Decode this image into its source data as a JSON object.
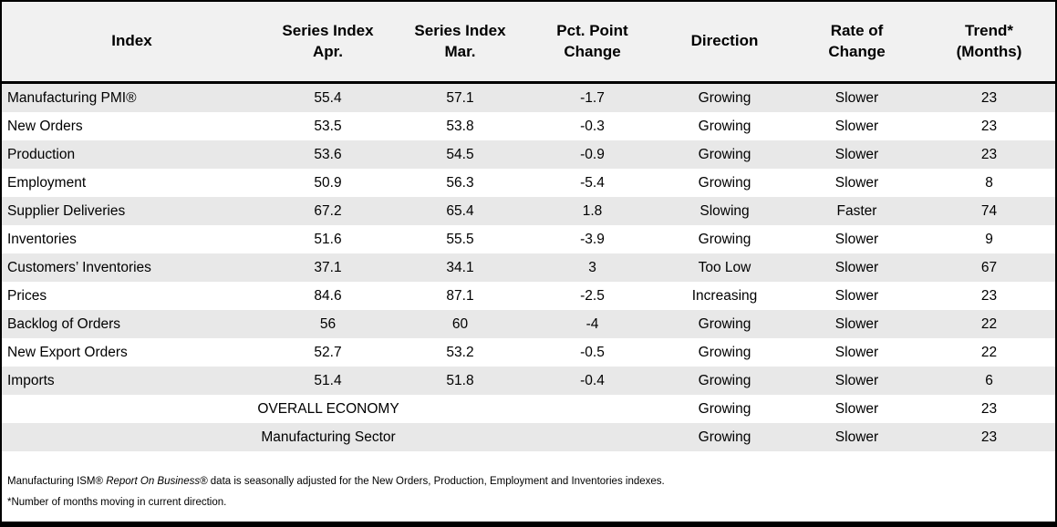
{
  "chart_data": {
    "type": "table",
    "column_keys": [
      "index",
      "series_index_apr",
      "series_index_mar",
      "pct_point_change",
      "direction",
      "rate_of_change",
      "trend_months"
    ],
    "columns": [
      "Index",
      "Series Index\nApr.",
      "Series Index\nMar.",
      "Pct. Point\nChange",
      "Direction",
      "Rate of\nChange",
      "Trend*\n(Months)"
    ],
    "rows": [
      [
        "Manufacturing PMI®",
        "55.4",
        "57.1",
        "-1.7",
        "Growing",
        "Slower",
        "23"
      ],
      [
        "New Orders",
        "53.5",
        "53.8",
        "-0.3",
        "Growing",
        "Slower",
        "23"
      ],
      [
        "Production",
        "53.6",
        "54.5",
        "-0.9",
        "Growing",
        "Slower",
        "23"
      ],
      [
        "Employment",
        "50.9",
        "56.3",
        "-5.4",
        "Growing",
        "Slower",
        "8"
      ],
      [
        "Supplier Deliveries",
        "67.2",
        "65.4",
        "1.8",
        "Slowing",
        "Faster",
        "74"
      ],
      [
        "Inventories",
        "51.6",
        "55.5",
        "-3.9",
        "Growing",
        "Slower",
        "9"
      ],
      [
        "Customers’ Inventories",
        "37.1",
        "34.1",
        "3",
        "Too Low",
        "Slower",
        "67"
      ],
      [
        "Prices",
        "84.6",
        "87.1",
        "-2.5",
        "Increasing",
        "Slower",
        "23"
      ],
      [
        "Backlog of Orders",
        "56",
        "60",
        "-4",
        "Growing",
        "Slower",
        "22"
      ],
      [
        "New Export Orders",
        "52.7",
        "53.2",
        "-0.5",
        "Growing",
        "Slower",
        "22"
      ],
      [
        "Imports",
        "51.4",
        "51.8",
        "-0.4",
        "Growing",
        "Slower",
        "6"
      ]
    ],
    "summary_rows": [
      {
        "label": "OVERALL ECONOMY",
        "pct_point_change": "",
        "direction": "Growing",
        "rate_of_change": "Slower",
        "trend_months": "23"
      },
      {
        "label": "Manufacturing Sector",
        "pct_point_change": "",
        "direction": "Growing",
        "rate_of_change": "Slower",
        "trend_months": "23"
      }
    ]
  },
  "footnotes": {
    "line1_prefix": "Manufacturing ISM® ",
    "line1_italic": "Report On Business®",
    "line1_suffix": " data is seasonally adjusted for the New Orders, Production, Employment and Inventories indexes.",
    "line2": "*Number of months moving in current direction."
  },
  "colors": {
    "row_stripe": "#e8e8e8",
    "header_bg": "#f1f1f1",
    "border": "#000000"
  }
}
